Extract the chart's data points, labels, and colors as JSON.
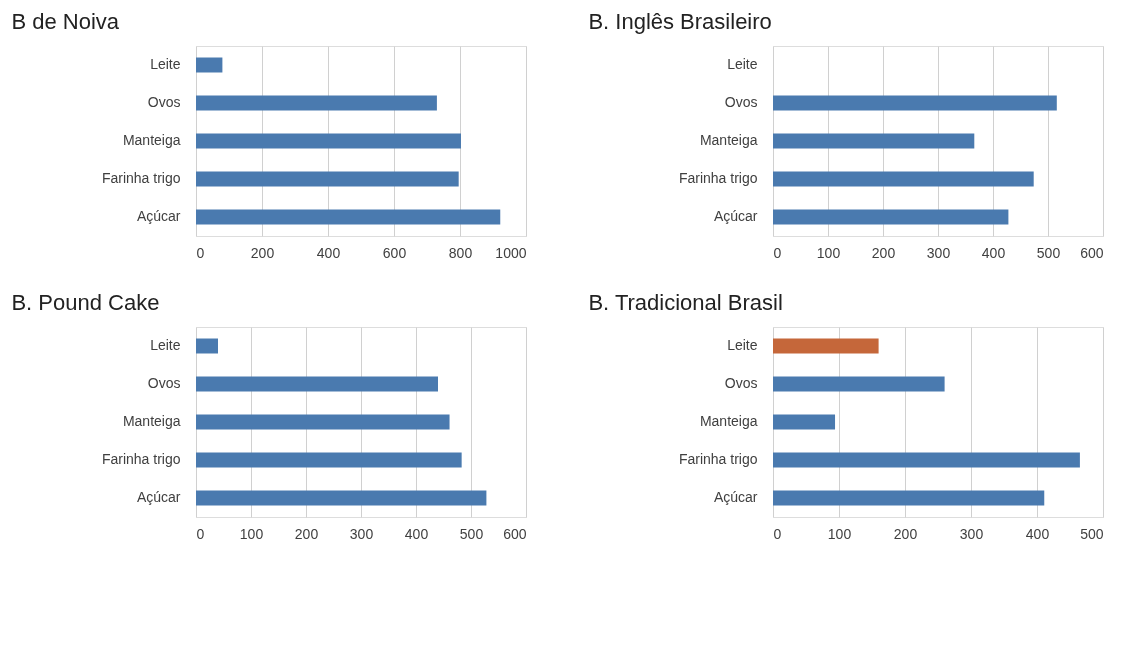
{
  "chart_data": [
    {
      "type": "bar",
      "title": "B de Noiva",
      "orientation": "horizontal",
      "categories": [
        "Leite",
        "Ovos",
        "Manteiga",
        "Farinha trigo",
        "Açúcar"
      ],
      "series": [
        {
          "color": "#4a7aaf",
          "values": [
            80,
            730,
            803,
            796,
            922
          ]
        }
      ],
      "xlim": [
        0,
        1000
      ],
      "xticks": [
        0,
        200,
        400,
        600,
        800,
        1000
      ],
      "grid": "x",
      "legend": false
    },
    {
      "type": "bar",
      "title": "B. Inglês Brasileiro",
      "orientation": "horizontal",
      "categories": [
        "Leite",
        "Ovos",
        "Manteiga",
        "Farinha trigo",
        "Açúcar"
      ],
      "series": [
        {
          "color": "#4a7aaf",
          "values": [
            null,
            516,
            366,
            474,
            428
          ]
        }
      ],
      "xlim": [
        0,
        600
      ],
      "xticks": [
        0,
        100,
        200,
        300,
        400,
        500,
        600
      ],
      "grid": "x",
      "legend": false
    },
    {
      "type": "bar",
      "title": "B. Pound Cake",
      "orientation": "horizontal",
      "categories": [
        "Leite",
        "Ovos",
        "Manteiga",
        "Farinha trigo",
        "Açúcar"
      ],
      "series": [
        {
          "color": "#4a7aaf",
          "values": [
            40,
            440,
            461,
            483,
            528
          ]
        }
      ],
      "xlim": [
        0,
        600
      ],
      "xticks": [
        0,
        100,
        200,
        300,
        400,
        500,
        600
      ],
      "grid": "x",
      "legend": false
    },
    {
      "type": "bar",
      "title": "B. Tradicional Brasil",
      "orientation": "horizontal",
      "categories": [
        "Leite",
        "Ovos",
        "Manteiga",
        "Farinha trigo",
        "Açúcar"
      ],
      "series": [
        {
          "colors": [
            "#c5673a",
            "#4a7aaf",
            "#4a7aaf",
            "#4a7aaf",
            "#4a7aaf"
          ],
          "values": [
            160,
            260,
            94,
            465,
            411
          ]
        }
      ],
      "xlim": [
        0,
        500
      ],
      "xticks": [
        0,
        100,
        200,
        300,
        400,
        500
      ],
      "grid": "x",
      "legend": false
    }
  ]
}
